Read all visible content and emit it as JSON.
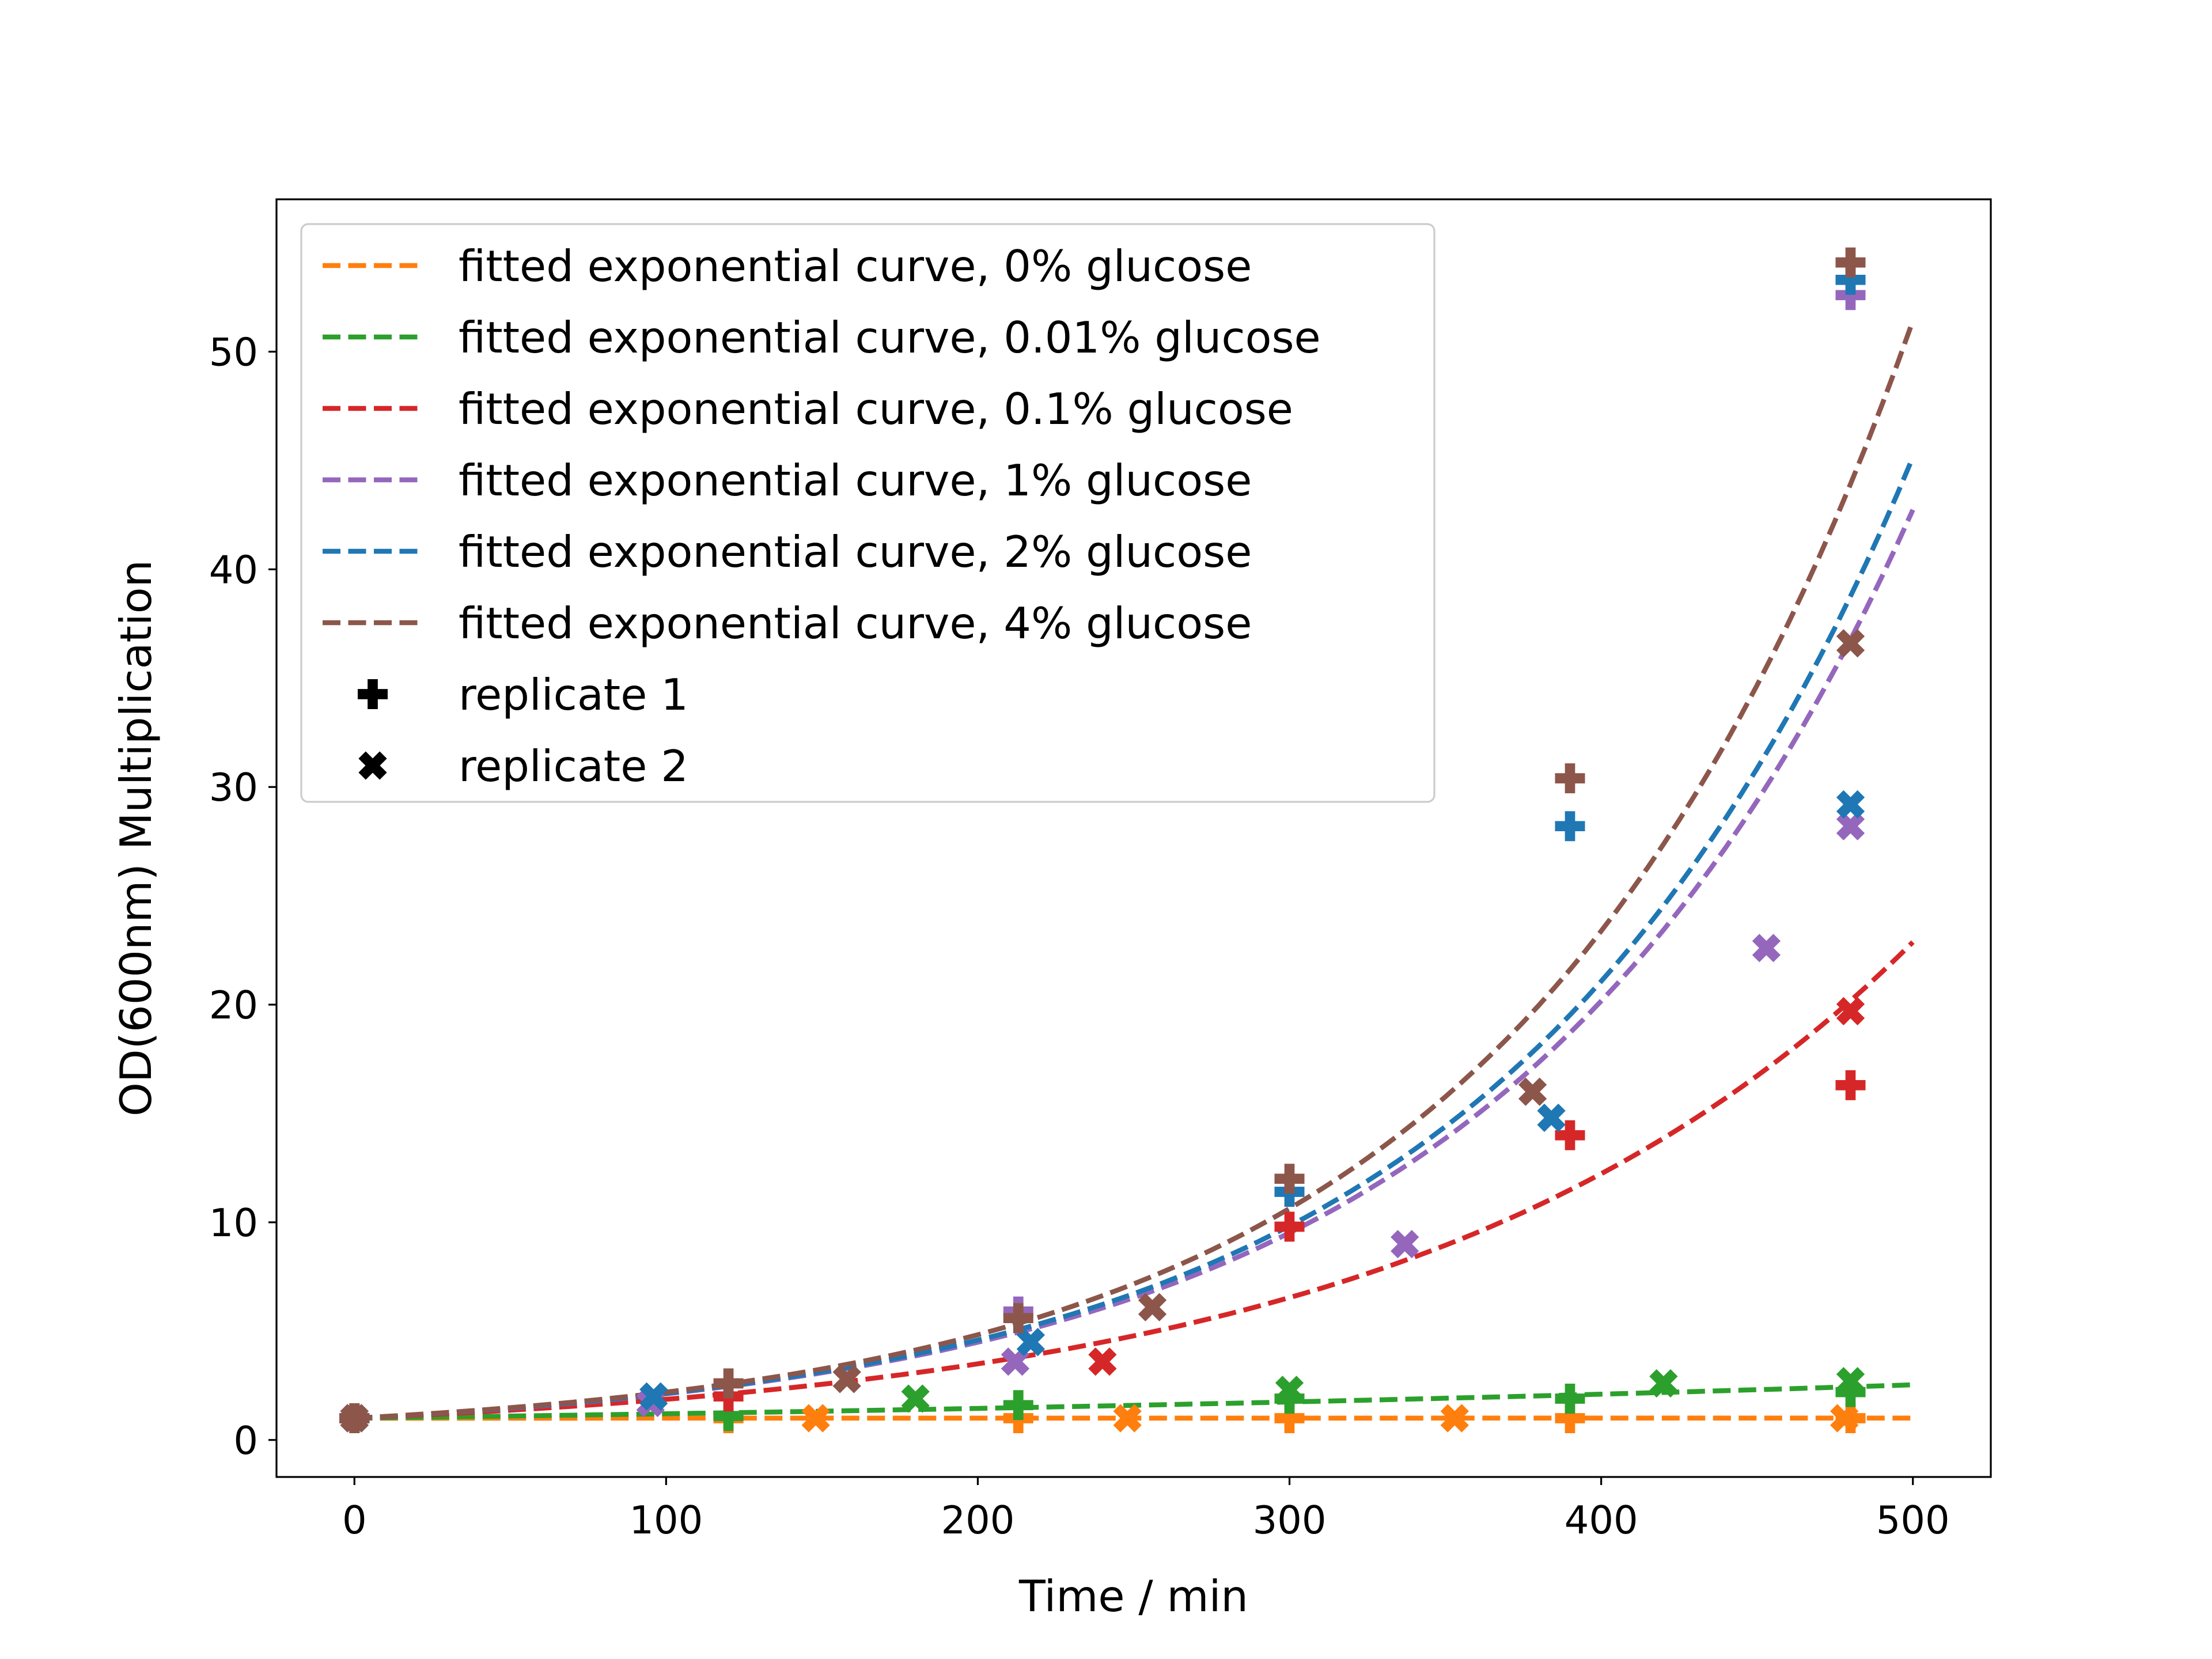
{
  "chart_data": {
    "type": "scatter",
    "xlabel": "Time / min",
    "ylabel": "OD(600nm) Multiplication",
    "xlim": [
      -25,
      525
    ],
    "ylim": [
      -1.7,
      57
    ],
    "xticks": [
      0,
      100,
      200,
      300,
      400,
      500
    ],
    "yticks": [
      0,
      10,
      20,
      30,
      40,
      50
    ],
    "grid": false,
    "legend_position": "top-left",
    "fits": [
      {
        "name": "fitted exponential curve, 0% glucose",
        "color": "#ff7f0e",
        "rate": 1e-05
      },
      {
        "name": "fitted exponential curve, 0.01% glucose",
        "color": "#2ca02c",
        "rate": 0.00186
      },
      {
        "name": "fitted exponential curve, 0.1% glucose",
        "color": "#d62728",
        "rate": 0.00626
      },
      {
        "name": "fitted exponential curve, 1% glucose",
        "color": "#9467bd",
        "rate": 0.00751
      },
      {
        "name": "fitted exponential curve, 2% glucose",
        "color": "#1f77b4",
        "rate": 0.00762
      },
      {
        "name": "fitted exponential curve, 4% glucose",
        "color": "#8c564b",
        "rate": 0.00788
      }
    ],
    "replicates": [
      {
        "name": "replicate 1",
        "marker": "plus"
      },
      {
        "name": "replicate 2",
        "marker": "x"
      }
    ],
    "points": [
      {
        "color": "#ff7f0e",
        "marker": "plus",
        "x": [
          0,
          120,
          213,
          300,
          390,
          480
        ],
        "y": [
          1.0,
          1.0,
          1.0,
          1.0,
          1.0,
          1.0
        ]
      },
      {
        "color": "#ff7f0e",
        "marker": "x",
        "x": [
          0,
          148,
          248,
          353,
          478
        ],
        "y": [
          1.0,
          1.0,
          1.0,
          1.0,
          1.0
        ]
      },
      {
        "color": "#2ca02c",
        "marker": "plus",
        "x": [
          0,
          120,
          213,
          300,
          390,
          480
        ],
        "y": [
          1.0,
          1.1,
          1.6,
          1.9,
          1.9,
          2.2
        ]
      },
      {
        "color": "#2ca02c",
        "marker": "x",
        "x": [
          0,
          180,
          300,
          420,
          480
        ],
        "y": [
          1.0,
          1.9,
          2.3,
          2.6,
          2.7
        ]
      },
      {
        "color": "#d62728",
        "marker": "plus",
        "x": [
          0,
          120,
          300,
          390,
          480
        ],
        "y": [
          1.0,
          2.0,
          9.8,
          14.0,
          16.3
        ]
      },
      {
        "color": "#d62728",
        "marker": "x",
        "x": [
          0,
          240,
          480
        ],
        "y": [
          1.0,
          3.6,
          19.7
        ]
      },
      {
        "color": "#9467bd",
        "marker": "plus",
        "x": [
          0,
          213,
          480
        ],
        "y": [
          1.0,
          5.9,
          52.6
        ]
      },
      {
        "color": "#9467bd",
        "marker": "x",
        "x": [
          0,
          95,
          212,
          337,
          453,
          480
        ],
        "y": [
          1.0,
          1.7,
          3.6,
          9.0,
          22.6,
          28.2
        ]
      },
      {
        "color": "#1f77b4",
        "marker": "plus",
        "x": [
          0,
          300,
          390,
          480
        ],
        "y": [
          1.0,
          11.4,
          28.2,
          53.3
        ]
      },
      {
        "color": "#1f77b4",
        "marker": "x",
        "x": [
          0,
          96,
          217,
          384,
          480
        ],
        "y": [
          1.0,
          2.0,
          4.5,
          14.8,
          29.2
        ]
      },
      {
        "color": "#8c564b",
        "marker": "plus",
        "x": [
          0,
          120,
          213,
          300,
          390,
          480
        ],
        "y": [
          1.0,
          2.6,
          5.6,
          12.0,
          30.4,
          54.1
        ]
      },
      {
        "color": "#8c564b",
        "marker": "x",
        "x": [
          0,
          158,
          256,
          378,
          480
        ],
        "y": [
          1.0,
          2.8,
          6.1,
          16.0,
          36.6
        ]
      }
    ]
  }
}
